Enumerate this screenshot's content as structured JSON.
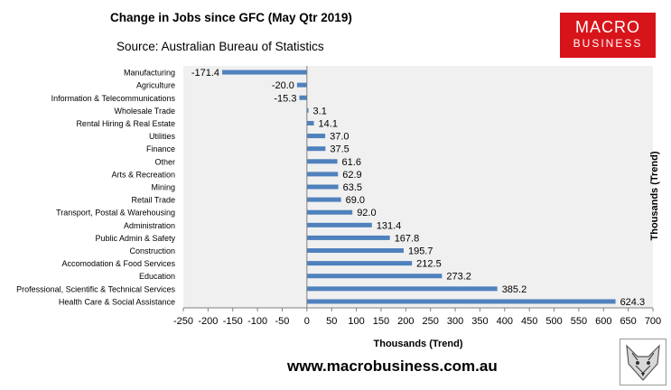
{
  "header": {
    "title": "Change in Jobs since GFC (May Qtr 2019)",
    "source": "Source: Australian Bureau of Statistics"
  },
  "logo": {
    "line1": "MACRO",
    "line2": "BUSINESS",
    "color": "#d8141b"
  },
  "footer": {
    "website": "www.macrobusiness.com.au"
  },
  "chart_data": {
    "type": "bar",
    "orientation": "horizontal",
    "title": "Change in Jobs since GFC (May Qtr 2019)",
    "xlabel": "Thousands (Trend)",
    "ylabel": "Thousands (Trend)",
    "xlim": [
      -250,
      700
    ],
    "xticks": [
      -250,
      -200,
      -150,
      -100,
      -50,
      0,
      50,
      100,
      150,
      200,
      250,
      300,
      350,
      400,
      450,
      500,
      550,
      600,
      650,
      700
    ],
    "bar_color": "#4f81bd",
    "plot_background": "#f0f0f0",
    "categories": [
      "Manufacturing",
      "Agriculture",
      "Information & Telecommunications",
      "Wholesale Trade",
      "Rental Hiring & Real Estate",
      "Utilities",
      "Finance",
      "Other",
      "Arts & Recreation",
      "Mining",
      "Retail Trade",
      "Transport, Postal & Warehousing",
      "Administration",
      "Public Admin & Safety",
      "Construction",
      "Accomodation & Food Services",
      "Education",
      "Professional, Scientific & Technical Services",
      "Health Care & Social Assistance"
    ],
    "values": [
      -171.4,
      -20.0,
      -15.3,
      3.1,
      14.1,
      37.0,
      37.5,
      61.6,
      62.9,
      63.5,
      69.0,
      92.0,
      131.4,
      167.8,
      195.7,
      212.5,
      273.2,
      385.2,
      624.3
    ],
    "value_labels": [
      "-171.4",
      "-20.0",
      "-15.3",
      "3.1",
      "14.1",
      "37.0",
      "37.5",
      "61.6",
      "62.9",
      "63.5",
      "69.0",
      "92.0",
      "131.4",
      "167.8",
      "195.7",
      "212.5",
      "273.2",
      "385.2",
      "624.3"
    ]
  }
}
